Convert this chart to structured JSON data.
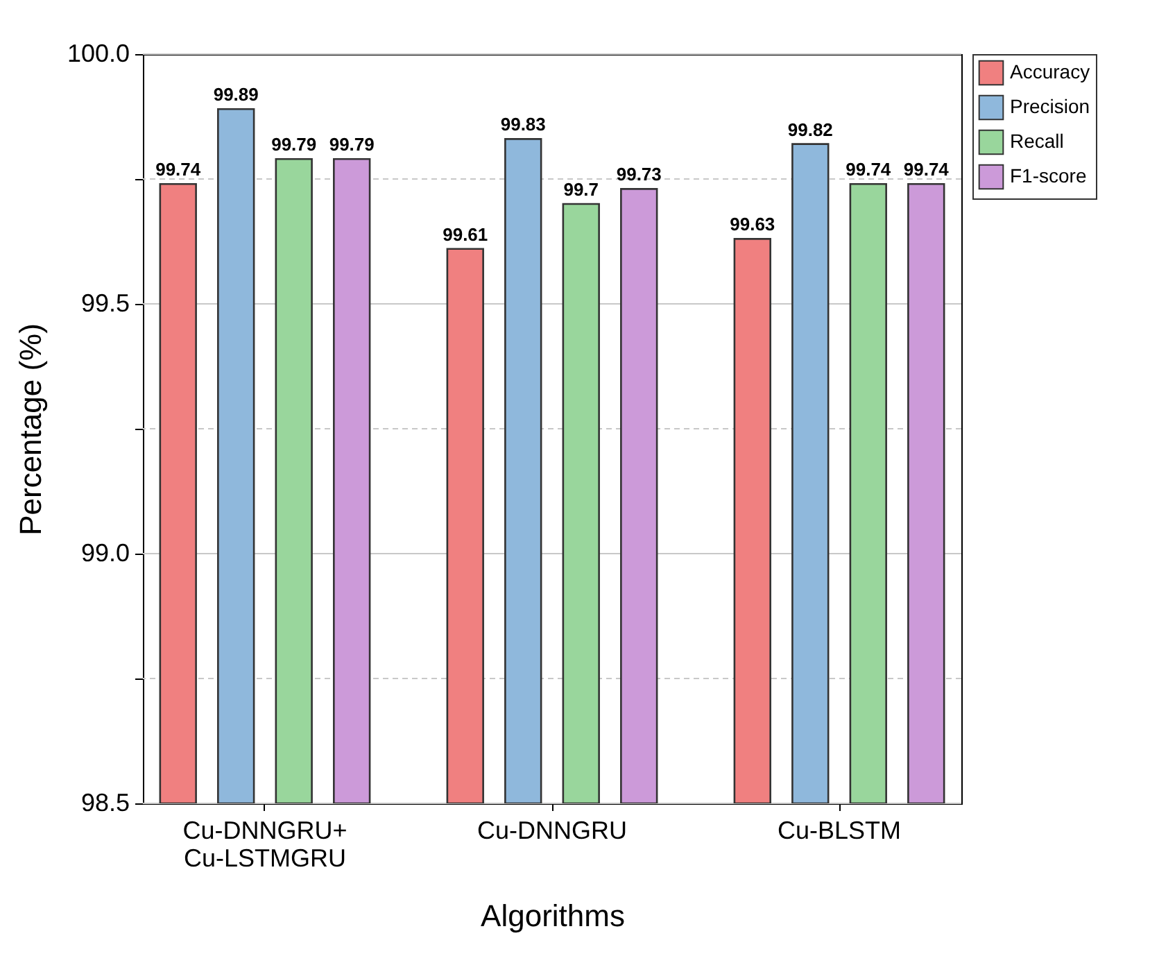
{
  "chart_data": {
    "type": "bar",
    "xlabel": "Algorithms",
    "ylabel": "Percentage (%)",
    "categories": [
      "Cu-DNNGRU+\nCu-LSTMGRU",
      "Cu-DNNGRU",
      "Cu-BLSTM"
    ],
    "series": [
      {
        "name": "Accuracy",
        "color": "#f08080",
        "values": [
          99.74,
          99.61,
          99.63
        ]
      },
      {
        "name": "Precision",
        "color": "#8fb8dc",
        "values": [
          99.89,
          99.83,
          99.82
        ]
      },
      {
        "name": "Recall",
        "color": "#99d69c",
        "values": [
          99.79,
          99.7,
          99.74
        ]
      },
      {
        "name": "F1-score",
        "color": "#cc9ad9",
        "values": [
          99.79,
          99.73,
          99.74
        ]
      }
    ],
    "ylim": [
      98.5,
      100
    ],
    "yticks": [
      98.5,
      {
        "value": 98.75,
        "label": null
      },
      {
        "value": 99,
        "label": "99.0"
      },
      {
        "value": 99.25,
        "label": null
      },
      99.5,
      {
        "value": 99.75,
        "label": null
      },
      {
        "value": 100,
        "label": "100.0"
      }
    ],
    "grid": "y",
    "legend": "top right",
    "data_labels": true
  }
}
